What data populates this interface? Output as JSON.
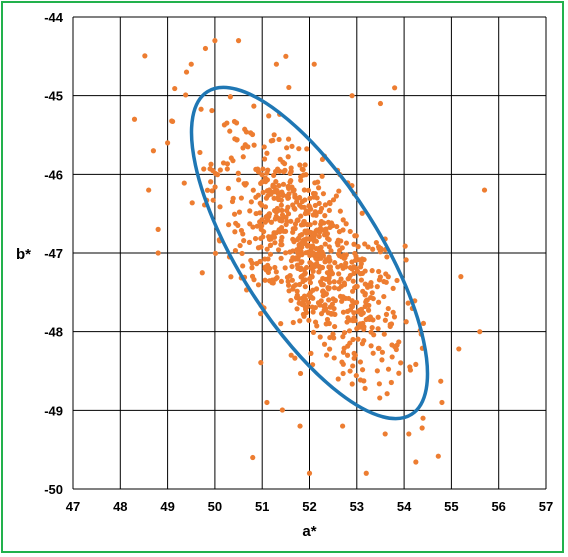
{
  "chart_data": {
    "type": "scatter",
    "title": "",
    "xlabel": "a*",
    "ylabel": "b*",
    "xlim": [
      47,
      57
    ],
    "ylim": [
      -50,
      -44
    ],
    "xticks": [
      47,
      48,
      49,
      50,
      51,
      52,
      53,
      54,
      55,
      56,
      57
    ],
    "yticks": [
      -44,
      -45,
      -46,
      -47,
      -48,
      -49,
      -50
    ],
    "grid": true,
    "point_color": "#ed7d31",
    "ellipse_color": "#1f77b4",
    "frame_color": "#22b14c",
    "ellipse": {
      "center": [
        52.0,
        -47.0
      ],
      "points_approx": [
        [
          50.0,
          -45.1
        ],
        [
          54.0,
          -48.9
        ],
        [
          49.4,
          -45.6
        ],
        [
          54.6,
          -48.3
        ]
      ]
    },
    "outliers": [
      [
        48.3,
        -45.3
      ],
      [
        48.6,
        -46.2
      ],
      [
        48.7,
        -45.7
      ],
      [
        48.8,
        -46.7
      ],
      [
        48.8,
        -47.0
      ],
      [
        49.0,
        -45.6
      ],
      [
        49.4,
        -44.7
      ],
      [
        49.5,
        -44.6
      ],
      [
        49.8,
        -44.4
      ],
      [
        50.0,
        -44.3
      ],
      [
        50.5,
        -44.3
      ],
      [
        51.3,
        -44.6
      ],
      [
        51.5,
        -44.5
      ],
      [
        52.1,
        -44.6
      ],
      [
        52.9,
        -45.0
      ],
      [
        53.5,
        -45.1
      ],
      [
        53.8,
        -44.9
      ],
      [
        55.2,
        -47.3
      ],
      [
        55.6,
        -48.0
      ],
      [
        55.7,
        -46.2
      ],
      [
        50.8,
        -49.6
      ],
      [
        52.0,
        -49.8
      ],
      [
        53.2,
        -49.8
      ],
      [
        51.1,
        -48.9
      ],
      [
        54.1,
        -49.3
      ],
      [
        53.6,
        -49.3
      ],
      [
        52.7,
        -49.2
      ],
      [
        54.8,
        -48.9
      ],
      [
        54.4,
        -49.1
      ],
      [
        51.8,
        -49.2
      ]
    ],
    "cluster": {
      "n": 820,
      "mean": [
        52.0,
        -47.0
      ],
      "sd": [
        1.0,
        0.78
      ],
      "correlation": -0.68
    }
  }
}
